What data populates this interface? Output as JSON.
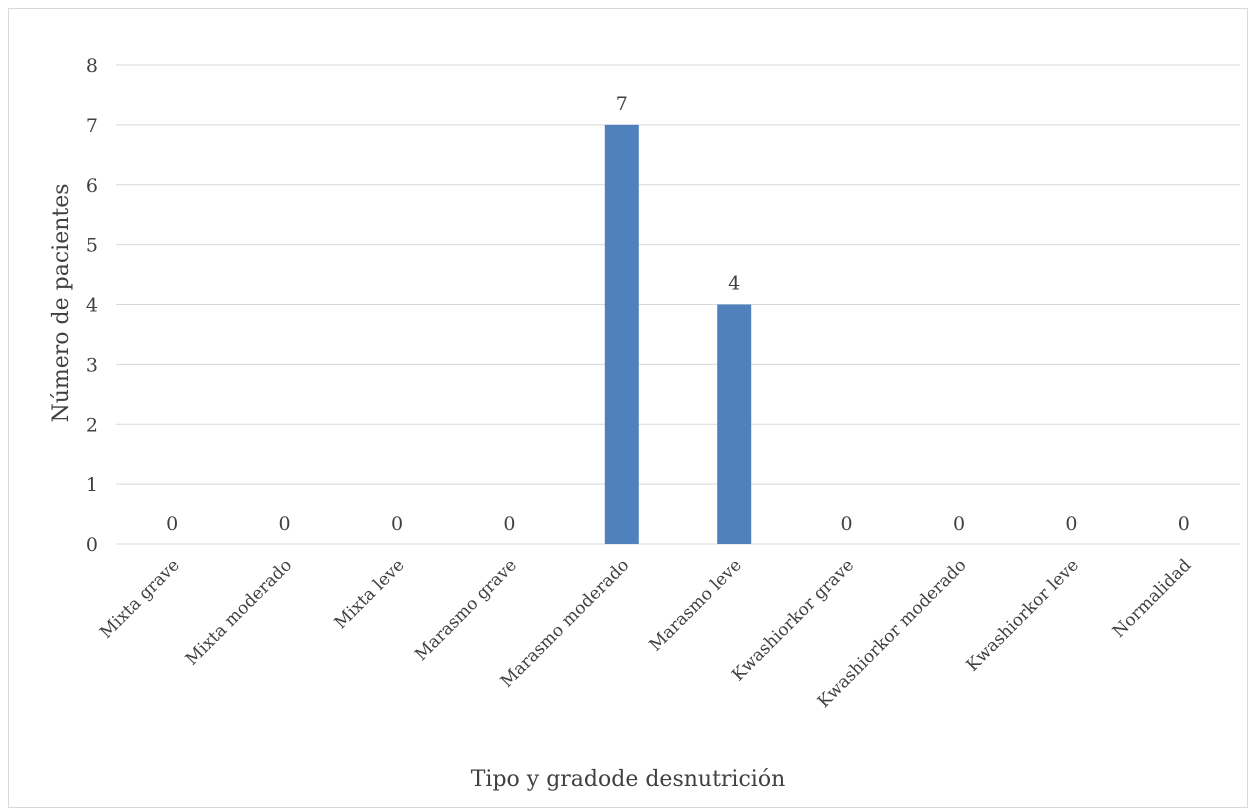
{
  "chart_data": {
    "type": "bar",
    "title": "",
    "xlabel": "Tipo y gradode desnutrición",
    "ylabel": "Número de pacientes",
    "categories": [
      "Mixta grave",
      "Mixta moderado",
      "Mixta leve",
      "Marasmo grave",
      "Marasmo moderado",
      "Marasmo leve",
      "Kwashiorkor grave",
      "Kwashiorkor moderado",
      "Kwashiorkor leve",
      "Normalidad"
    ],
    "values": [
      0,
      0,
      0,
      0,
      7,
      4,
      0,
      0,
      0,
      0
    ],
    "data_labels": [
      "0",
      "0",
      "0",
      "0",
      "7",
      "4",
      "0",
      "0",
      "0",
      "0"
    ],
    "yticks": [
      "0",
      "1",
      "2",
      "3",
      "4",
      "5",
      "6",
      "7",
      "8"
    ],
    "ylim": [
      0,
      8
    ],
    "grid": true,
    "legend": "none",
    "bar_color": "#4f81bd",
    "grid_color": "#d9d9d9"
  }
}
